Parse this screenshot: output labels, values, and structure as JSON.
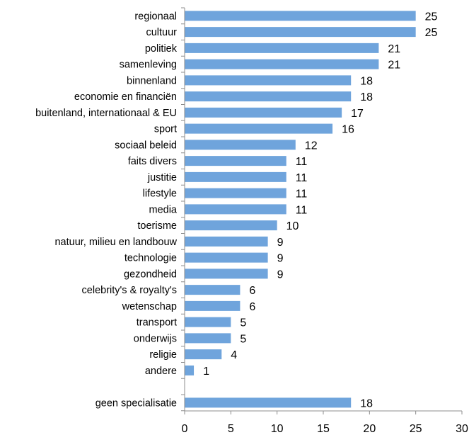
{
  "chart_data": {
    "type": "bar",
    "orientation": "horizontal",
    "categories": [
      "regionaal",
      "cultuur",
      "politiek",
      "samenleving",
      "binnenland",
      "economie en financiën",
      "buitenland, internationaal & EU",
      "sport",
      "sociaal beleid",
      "faits divers",
      "justitie",
      "lifestyle",
      "media",
      "toerisme",
      "natuur, milieu en landbouw",
      "technologie",
      "gezondheid",
      "celebrity's & royalty's",
      "wetenschap",
      "transport",
      "onderwijs",
      "religie",
      "andere",
      "",
      "geen specialisatie"
    ],
    "values": [
      25,
      25,
      21,
      21,
      18,
      18,
      17,
      16,
      12,
      11,
      11,
      11,
      11,
      10,
      9,
      9,
      9,
      6,
      6,
      5,
      5,
      4,
      1,
      null,
      18
    ],
    "xlim": [
      0,
      30
    ],
    "xticks": [
      "0",
      "5",
      "10",
      "15",
      "20",
      "25",
      "30"
    ],
    "title": "",
    "xlabel": "",
    "ylabel": "",
    "grid": false,
    "legend": "none",
    "data_labels": true,
    "bar_color": "#6fa4dc",
    "axis_color": "#8c8c8c"
  }
}
